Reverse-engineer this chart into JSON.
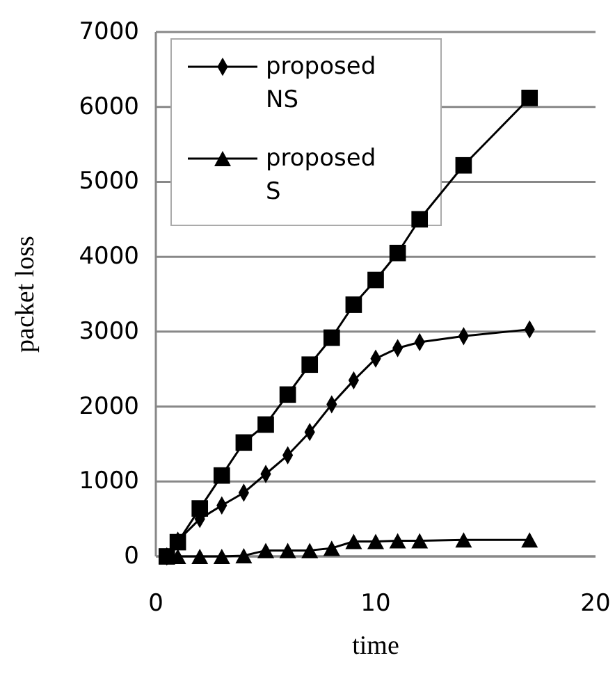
{
  "chart_data": {
    "type": "line",
    "xlabel": "time",
    "ylabel": "packet loss",
    "xlim": [
      0,
      20
    ],
    "xticks": [
      0,
      10,
      20
    ],
    "ylim": [
      0,
      7000
    ],
    "yticks": [
      0,
      1000,
      2000,
      3000,
      4000,
      5000,
      6000,
      7000
    ],
    "grid": "y",
    "legend": "top left",
    "line_style": "solid",
    "series": [
      {
        "name": "proposed NS",
        "color": "#000000",
        "marker": "diamond",
        "x": [
          0.5,
          1,
          2,
          3,
          4,
          5,
          6,
          7,
          8,
          9,
          10,
          11,
          12,
          14,
          17
        ],
        "values": [
          0,
          210,
          500,
          680,
          850,
          1100,
          1350,
          1660,
          2030,
          2350,
          2640,
          2780,
          2860,
          2940,
          3030
        ]
      },
      {
        "name": "proposed S",
        "color": "#000000",
        "marker": "triangle",
        "x": [
          0.5,
          1,
          2,
          3,
          4,
          5,
          6,
          7,
          8,
          9,
          10,
          11,
          12,
          14,
          17
        ],
        "values": [
          0,
          0,
          0,
          0,
          10,
          80,
          80,
          80,
          110,
          200,
          200,
          210,
          210,
          220,
          220
        ]
      },
      {
        "color": "#000000",
        "marker": "square",
        "x": [
          0.5,
          1,
          2,
          3,
          4,
          5,
          6,
          7,
          8,
          9,
          10,
          11,
          12,
          14,
          17
        ],
        "values": [
          0,
          190,
          640,
          1080,
          1520,
          1760,
          2160,
          2560,
          2920,
          3360,
          3690,
          4050,
          4500,
          5220,
          6120
        ]
      }
    ]
  }
}
